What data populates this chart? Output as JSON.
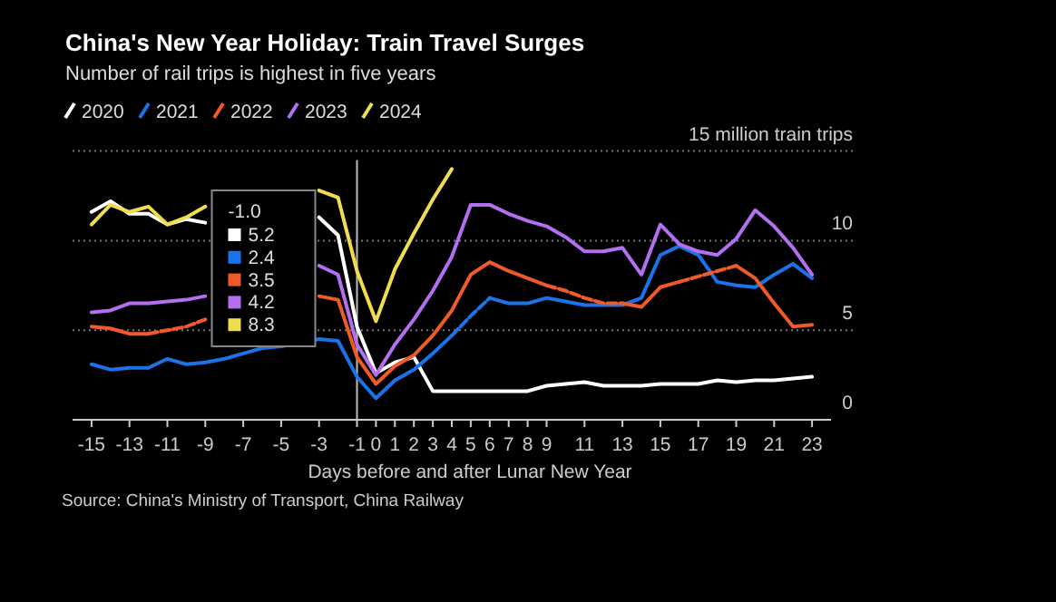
{
  "chart_data": {
    "type": "line",
    "title": "China's New Year Holiday: Train Travel Surges",
    "subtitle": "Number of rail trips is highest in five years",
    "xlabel": "Days before and after Lunar New Year",
    "x": [
      -15,
      -14,
      -13,
      -12,
      -11,
      -10,
      -9,
      -8,
      -7,
      -6,
      -5,
      -3,
      -2,
      -1,
      0,
      1,
      2,
      3,
      4,
      5,
      6,
      7,
      8,
      9,
      10,
      11,
      12,
      13,
      14,
      15,
      16,
      17,
      18,
      19,
      20,
      21,
      22,
      23
    ],
    "series": [
      {
        "name": "2020",
        "color": "#ffffff",
        "values": [
          11.6,
          12.2,
          11.5,
          11.5,
          10.9,
          11.2,
          11.0,
          null,
          null,
          null,
          null,
          11.3,
          10.3,
          5.2,
          2.6,
          3.2,
          3.5,
          1.6,
          1.6,
          1.6,
          1.6,
          1.6,
          1.6,
          1.9,
          2.0,
          2.1,
          1.9,
          1.9,
          1.9,
          2.0,
          2.0,
          2.0,
          2.2,
          2.1,
          2.2,
          2.2,
          2.3,
          2.4
        ]
      },
      {
        "name": "2021",
        "color": "#1a73e8",
        "values": [
          3.1,
          2.8,
          2.9,
          2.9,
          3.4,
          3.1,
          3.2,
          3.4,
          3.7,
          4.0,
          4.1,
          4.5,
          4.4,
          2.4,
          1.2,
          2.2,
          2.8,
          3.7,
          4.7,
          null,
          6.8,
          6.5,
          6.5,
          6.8,
          6.6,
          6.4,
          6.4,
          6.4,
          6.8,
          9.2,
          9.7,
          9.2,
          7.7,
          7.5,
          7.4,
          8.1,
          8.7,
          7.9
        ]
      },
      {
        "color": "#1b74e9",
        "line_style": "dashed",
        "values": [
          null,
          null,
          null,
          null,
          null,
          null,
          null,
          null,
          null,
          null,
          null,
          null,
          null,
          null,
          null,
          null,
          null,
          null,
          4.7,
          5.8,
          6.8,
          null,
          null,
          null,
          null,
          null,
          null,
          null,
          null,
          null,
          null,
          null,
          null,
          null,
          null,
          null,
          null,
          null
        ]
      },
      {
        "name": "2022",
        "color": "#f05a28",
        "values": [
          5.2,
          5.1,
          4.8,
          4.8,
          null,
          null,
          null,
          null,
          null,
          null,
          null,
          6.9,
          6.7,
          3.5,
          2.0,
          3.0,
          3.6,
          4.7,
          6.1,
          8.1,
          8.8,
          8.3,
          7.9,
          7.5,
          null,
          null,
          null,
          6.5,
          6.3,
          7.4,
          7.7,
          null,
          null,
          8.6,
          7.9,
          6.5,
          5.2,
          5.3
        ]
      },
      {
        "color": "#f15b29",
        "line_style": "dashed",
        "values": [
          null,
          null,
          null,
          4.8,
          5.0,
          5.2,
          5.6,
          null,
          null,
          null,
          null,
          null,
          null,
          null,
          null,
          null,
          null,
          null,
          null,
          null,
          null,
          null,
          null,
          7.5,
          7.2,
          6.8,
          6.5,
          6.5,
          null,
          null,
          7.7,
          8.0,
          8.3,
          8.6,
          null,
          null,
          null,
          null
        ]
      },
      {
        "name": "2023",
        "color": "#b36ff0",
        "values": [
          6.0,
          6.1,
          6.5,
          6.5,
          6.6,
          6.7,
          6.9,
          null,
          null,
          null,
          null,
          8.6,
          8.1,
          4.2,
          2.5,
          4.2,
          5.6,
          7.2,
          9.1,
          12.0,
          12.0,
          11.5,
          11.1,
          10.8,
          10.2,
          9.4,
          9.4,
          9.6,
          8.1,
          10.9,
          9.8,
          9.4,
          9.2,
          10.1,
          11.7,
          10.8,
          9.6,
          8.1
        ]
      },
      {
        "name": "2024",
        "color": "#f0dc50",
        "values": [
          10.9,
          12.0,
          11.6,
          11.9,
          10.9,
          11.3,
          11.9,
          null,
          null,
          null,
          null,
          12.8,
          12.4,
          8.3,
          5.5,
          8.4,
          10.4,
          12.3,
          14.0,
          null,
          null,
          null,
          null,
          null,
          null,
          null,
          null,
          null,
          null,
          null,
          null,
          null,
          null,
          null,
          null,
          null,
          null,
          null
        ]
      }
    ],
    "xlim": [
      -16,
      24
    ],
    "xticks": [
      -15,
      -13,
      -11,
      -9,
      -7,
      -5,
      -3,
      -1,
      0,
      1,
      2,
      3,
      4,
      5,
      6,
      7,
      8,
      9,
      11,
      13,
      15,
      17,
      19,
      21,
      23
    ],
    "ylim": [
      0,
      15
    ],
    "yticks": [
      0,
      5,
      10,
      {
        "value": 15,
        "label": "15 million train trips"
      }
    ],
    "grid": "y",
    "legend": "top left",
    "marker": "none",
    "line_style": "solid",
    "ref_lines": [
      {
        "axis": "x",
        "value": -1,
        "color": "#bbbbbb"
      }
    ],
    "annotations": [
      "-1.0",
      "5.2",
      "2.4",
      "3.5",
      "4.2",
      "8.3",
      "Source: China's Ministry of Transport, China Railway"
    ]
  }
}
